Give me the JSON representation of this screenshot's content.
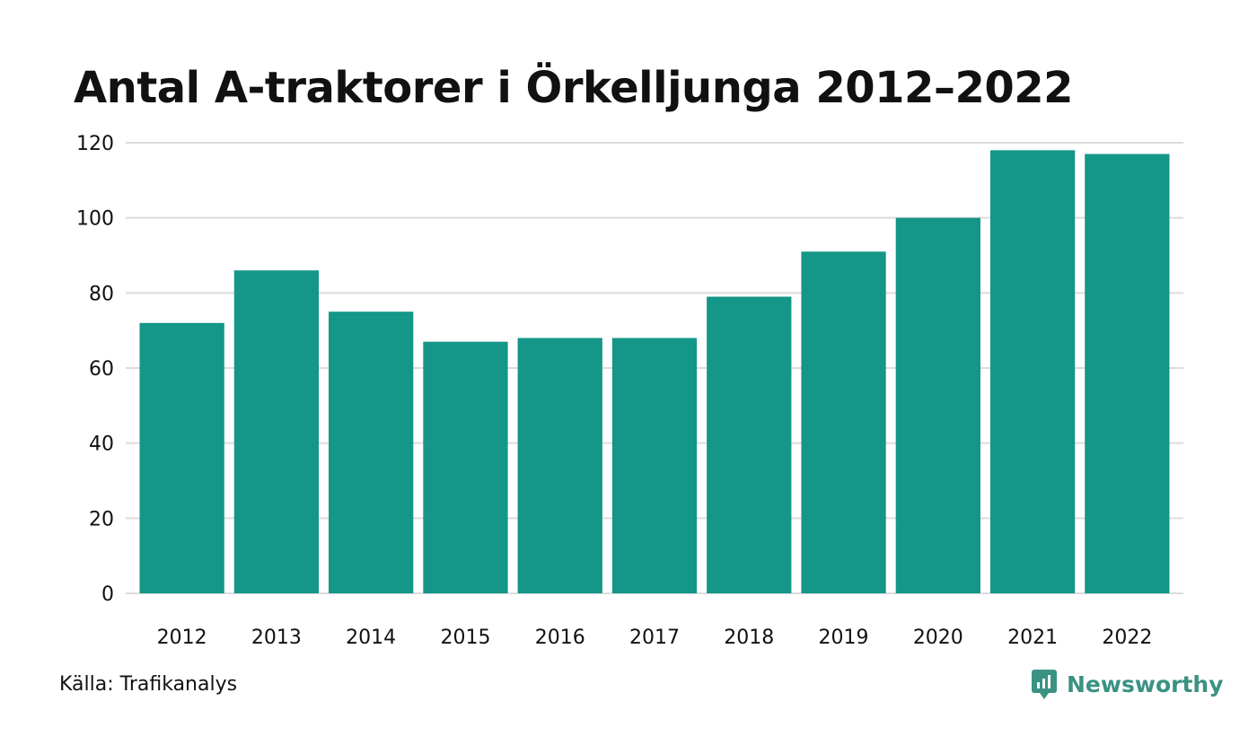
{
  "title": "Antal A-traktorer i Örkelljunga 2012–2022",
  "source": "Källa: Trafikanalys",
  "brand": {
    "name": "Newsworthy",
    "icon": "newsworthy-logo-icon"
  },
  "colors": {
    "bar": "#149688",
    "grid": "#dcdcdc",
    "text": "#111111",
    "brand": "#3a9283"
  },
  "chart_data": {
    "type": "bar",
    "categories": [
      "2012",
      "2013",
      "2014",
      "2015",
      "2016",
      "2017",
      "2018",
      "2019",
      "2020",
      "2021",
      "2022"
    ],
    "values": [
      72,
      86,
      75,
      67,
      68,
      68,
      79,
      91,
      100,
      118,
      117
    ],
    "title": "Antal A-traktorer i Örkelljunga 2012–2022",
    "xlabel": "",
    "ylabel": "",
    "ylim": [
      0,
      120
    ],
    "yticks": [
      "0",
      "20",
      "40",
      "60",
      "80",
      "100",
      "120"
    ],
    "grid": true,
    "legend": "none"
  }
}
